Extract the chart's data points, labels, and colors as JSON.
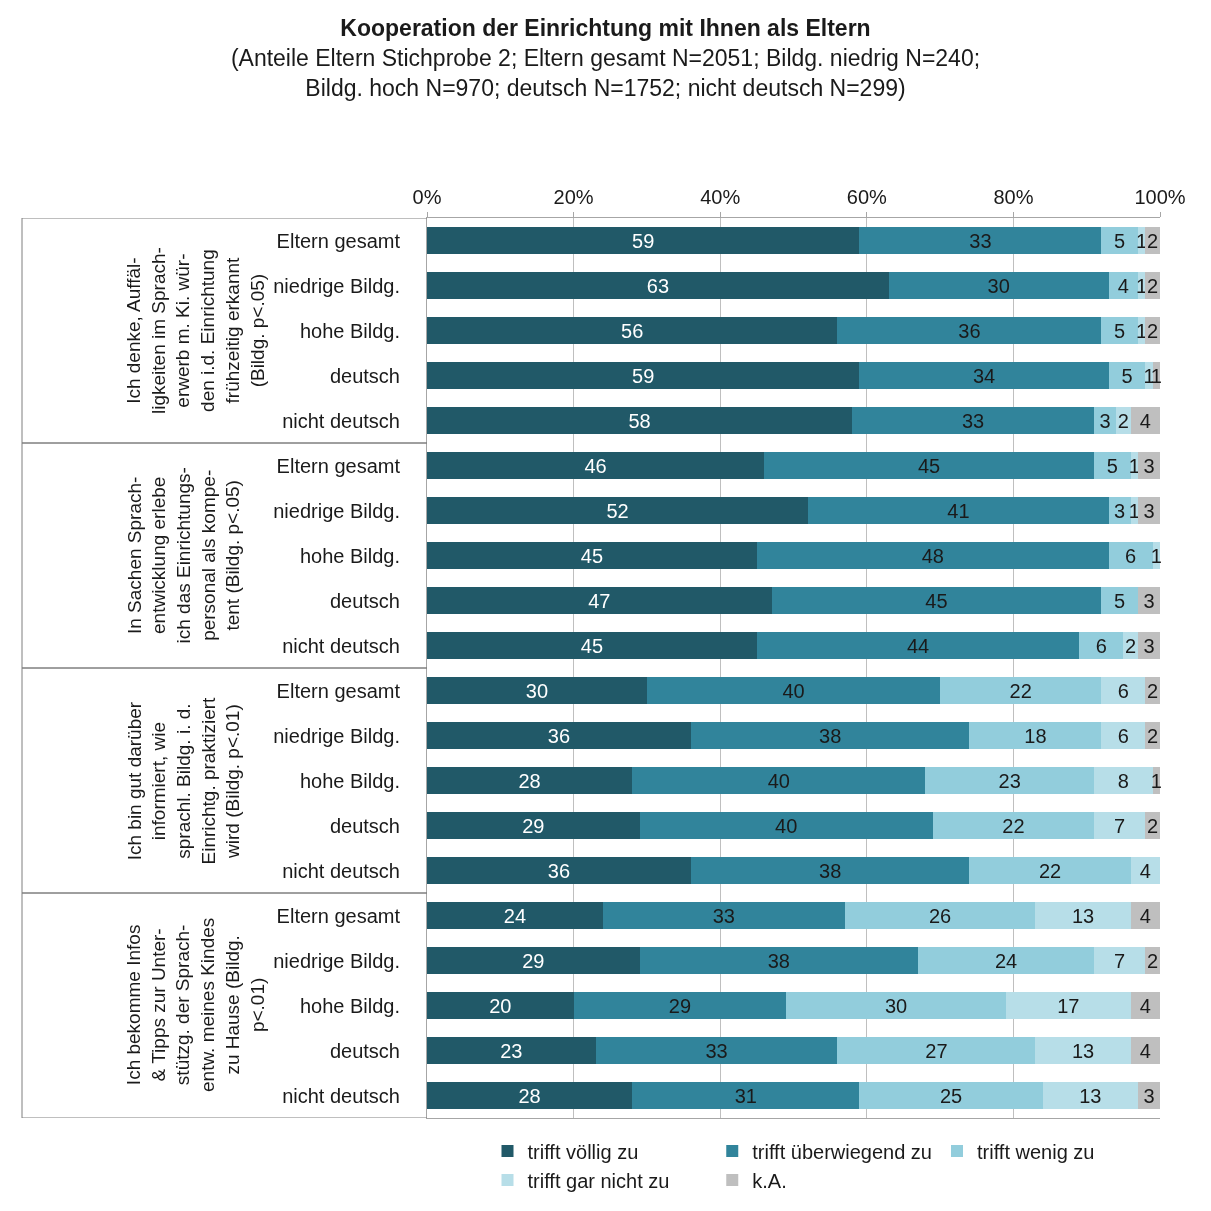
{
  "chart_data": {
    "type": "bar",
    "orientation": "horizontal",
    "stacked": true,
    "data_labels": true,
    "grid": "x",
    "legend": "bottom",
    "title": "Kooperation der Einrichtung mit Ihnen als Eltern",
    "subtitle": "(Anteile Eltern Stichprobe 2; Eltern gesamt N=2051; Bildg. niedrig N=240;\nBildg. hoch N=970; deutsch N=1752; nicht deutsch N=299)",
    "categories": [
      "Eltern gesamt",
      "niedrige Bildg.",
      "hohe Bildg.",
      "deutsch",
      "nicht deutsch",
      "Eltern gesamt",
      "niedrige Bildg.",
      "hohe Bildg.",
      "deutsch",
      "nicht deutsch",
      "Eltern gesamt",
      "niedrige Bildg.",
      "hohe Bildg.",
      "deutsch",
      "nicht deutsch",
      "Eltern gesamt",
      "niedrige Bildg.",
      "hohe Bildg.",
      "deutsch",
      "nicht deutsch"
    ],
    "annotations": [
      "Ich denke, Auffäl-\nligkeiten im Sprach-\nerwerb m. Ki. wür-\nden i.d. Einrichtung\nfrühzeitig erkannt\n(Bildg. p<.05)",
      "In Sachen Sprach-\nentwicklung erlebe\nich das Einrichtungs-\npersonal als kompe-\ntent (Bildg. p<.05)",
      "Ich bin gut darüber\ninformiert, wie\nsprachl. Bildg. i. d.\nEinrichtg. praktiziert\nwird (Bildg. p<.01)",
      "Ich bekomme Infos\n& Tipps zur Unter-\nstützg. der Sprach-\nentw. meines Kindes\nzu Hause (Bildg.\np<.01)"
    ],
    "xlim": [
      0,
      100
    ],
    "xticks": [
      {
        "value": 0,
        "label": "0%"
      },
      {
        "value": 20,
        "label": "20%"
      },
      {
        "value": 40,
        "label": "40%"
      },
      {
        "value": 60,
        "label": "60%"
      },
      {
        "value": 80,
        "label": "80%"
      },
      {
        "value": 100,
        "label": "100%"
      }
    ],
    "series": [
      {
        "name": "trifft völlig zu",
        "color": "#215968",
        "values": [
          59,
          63,
          56,
          59,
          58,
          46,
          52,
          45,
          47,
          45,
          30,
          36,
          28,
          29,
          36,
          24,
          29,
          20,
          23,
          28
        ]
      },
      {
        "name": "trifft überwiegend zu",
        "color": "#31849b",
        "values": [
          33,
          30,
          36,
          34,
          33,
          45,
          41,
          48,
          45,
          44,
          40,
          38,
          40,
          40,
          38,
          33,
          38,
          29,
          33,
          31
        ]
      },
      {
        "name": "trifft wenig zu",
        "color": "#92cddc",
        "values": [
          5,
          4,
          5,
          5,
          3,
          5,
          3,
          6,
          5,
          6,
          22,
          18,
          23,
          22,
          22,
          26,
          24,
          30,
          27,
          25
        ]
      },
      {
        "name": "trifft gar nicht zu",
        "color": "#b7dee8",
        "values": [
          1,
          1,
          1,
          1,
          2,
          1,
          1,
          1,
          null,
          2,
          6,
          6,
          8,
          7,
          4,
          13,
          7,
          17,
          13,
          13
        ]
      },
      {
        "name": "k.A.",
        "color": "#bfbfbf",
        "values": [
          2,
          2,
          2,
          1,
          4,
          3,
          3,
          null,
          3,
          3,
          2,
          2,
          1,
          2,
          null,
          4,
          2,
          4,
          4,
          3
        ]
      }
    ]
  }
}
